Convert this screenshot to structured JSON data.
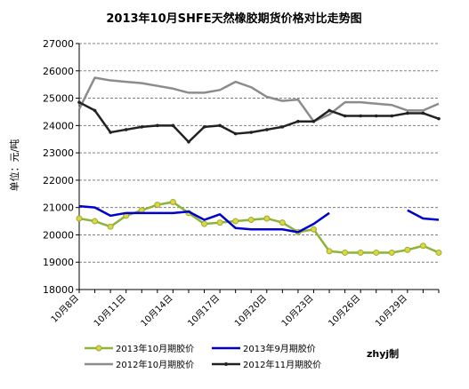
{
  "chart_data": {
    "type": "line",
    "title": "2013年10月SHFE天然橡胶期货价格对比走势图",
    "ylabel": "单位：元/吨",
    "xlabel": "",
    "ylim": [
      18000,
      27000
    ],
    "yticks": [
      18000,
      19000,
      20000,
      21000,
      22000,
      23000,
      24000,
      25000,
      26000,
      27000
    ],
    "x": [
      "10月8日",
      "10月9日",
      "10月10日",
      "10月11日",
      "10月12日",
      "10月13日",
      "10月14日",
      "10月15日",
      "10月16日",
      "10月17日",
      "10月18日",
      "10月19日",
      "10月20日",
      "10月21日",
      "10月22日",
      "10月23日",
      "10月24日",
      "10月25日",
      "10月26日",
      "10月27日",
      "10月28日",
      "10月29日",
      "10月30日",
      "10月31日"
    ],
    "xtick_labels": [
      "10月8日",
      "10月11日",
      "10月14日",
      "10月17日",
      "10月20日",
      "10月23日",
      "10月26日",
      "10月29日"
    ],
    "grid": "horizontal dashed",
    "credit": "zhyj制",
    "series": [
      {
        "name": "2013年10月期胶价",
        "color": "#8db33a",
        "marker": "circle",
        "values": [
          20600,
          20500,
          20300,
          20700,
          20900,
          21100,
          21200,
          20800,
          20400,
          20450,
          20500,
          20550,
          20600,
          20450,
          20100,
          20200,
          19400,
          19350,
          19350,
          19350,
          19350,
          19450,
          19600,
          19350
        ]
      },
      {
        "name": "2013年9月期胶价",
        "color": "#0000cc",
        "marker": "none",
        "values": [
          21050,
          21000,
          20700,
          20800,
          20800,
          20800,
          20800,
          20850,
          20550,
          20750,
          20250,
          20200,
          20200,
          20200,
          20100,
          20400,
          20800,
          null,
          null,
          null,
          null,
          20900,
          20600,
          20550
        ]
      },
      {
        "name": "2012年10月期胶价",
        "color": "#8c8c8c",
        "marker": "none",
        "values": [
          24600,
          25750,
          25650,
          25600,
          25550,
          25450,
          25350,
          25200,
          25200,
          25300,
          25600,
          25400,
          25050,
          24900,
          24950,
          24150,
          24400,
          24850,
          24850,
          24800,
          24750,
          24550,
          24550,
          24800
        ]
      },
      {
        "name": "2012年11月期胶价",
        "color": "#222222",
        "marker": "small-circle",
        "values": [
          24850,
          24550,
          23750,
          23850,
          23950,
          24000,
          24000,
          23400,
          23950,
          24000,
          23700,
          23750,
          23850,
          23950,
          24150,
          24150,
          24550,
          24350,
          24350,
          24350,
          24350,
          24450,
          24450,
          24250
        ]
      }
    ]
  }
}
